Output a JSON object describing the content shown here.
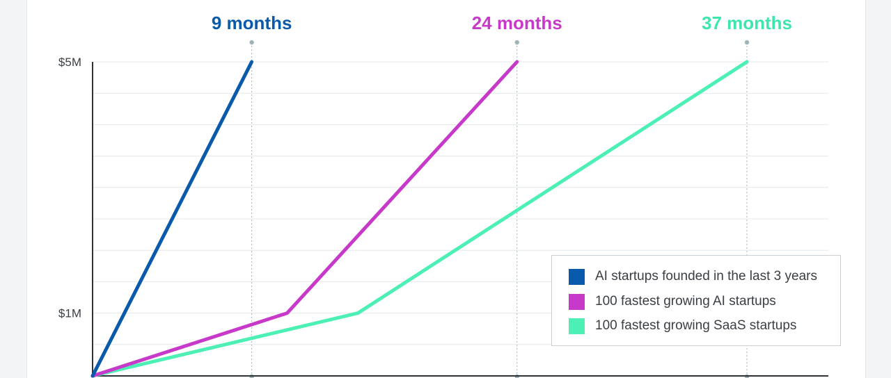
{
  "chart_data": {
    "type": "line",
    "title": "",
    "xlabel": "",
    "ylabel": "",
    "x_unit": "months",
    "y_ticks": [
      {
        "value": 1,
        "label": "$1M"
      },
      {
        "value": 5,
        "label": "$5M"
      }
    ],
    "ylim": [
      0,
      5
    ],
    "grid": true,
    "milestones": [
      {
        "x": 9,
        "label": "9 months",
        "color": "#0a5aab"
      },
      {
        "x": 24,
        "label": "24 months",
        "color": "#c73ac9"
      },
      {
        "x": 37,
        "label": "37 months",
        "color": "#3ee6ad"
      }
    ],
    "series": [
      {
        "name": "AI startups founded in the last 3 years",
        "color": "#0a5aab",
        "points": [
          [
            0,
            0
          ],
          [
            9,
            5
          ]
        ]
      },
      {
        "name": "100 fastest growing AI startups",
        "color": "#c73ac9",
        "points": [
          [
            0,
            0
          ],
          [
            11,
            1
          ],
          [
            24,
            5
          ]
        ]
      },
      {
        "name": "100 fastest growing SaaS startups",
        "color": "#4cf0b4",
        "points": [
          [
            0,
            0
          ],
          [
            15,
            1
          ],
          [
            37,
            5
          ]
        ]
      }
    ],
    "legend_position": "bottom-right"
  }
}
